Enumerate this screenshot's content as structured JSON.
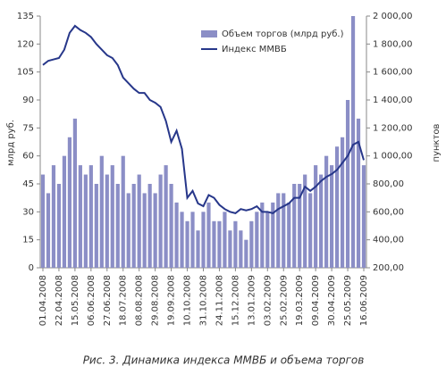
{
  "chart_data": {
    "type": "bar-line",
    "caption": "Рис. 3. Динамика индекса ММВБ и объема торгов",
    "y_label": "млрд руб.",
    "y2_label": "пунктов",
    "categories": [
      "01.04.2008",
      null,
      null,
      "22.04.2008",
      null,
      null,
      "15.05.2008",
      null,
      null,
      "06.06.2008",
      null,
      null,
      "27.06.2008",
      null,
      null,
      "18.07.2008",
      null,
      null,
      "08.08.2008",
      null,
      null,
      "29.08.2008",
      null,
      null,
      "19.09.2008",
      null,
      null,
      "10.10.2008",
      null,
      null,
      "31.10.2008",
      null,
      null,
      "24.11.2008",
      null,
      null,
      "15.12.2008",
      null,
      null,
      "13.01.2009",
      null,
      null,
      "03.02.2009",
      null,
      null,
      "25.02.2009",
      null,
      null,
      "19.03.2009",
      null,
      null,
      "09.04.2009",
      null,
      null,
      "30.04.2009",
      null,
      null,
      "25.05.2009",
      null,
      null,
      "16.06.2009"
    ],
    "series": [
      {
        "name": "Объем торгов (млрд руб.)",
        "type": "bar",
        "color": "#8b8ec6",
        "values": [
          50,
          40,
          55,
          45,
          60,
          70,
          80,
          55,
          50,
          55,
          45,
          60,
          50,
          55,
          45,
          60,
          40,
          45,
          50,
          40,
          45,
          40,
          50,
          55,
          45,
          35,
          30,
          25,
          30,
          20,
          30,
          35,
          25,
          25,
          30,
          20,
          25,
          20,
          15,
          25,
          30,
          35,
          30,
          35,
          40,
          40,
          35,
          45,
          45,
          50,
          40,
          55,
          50,
          60,
          55,
          65,
          70,
          90,
          135,
          80,
          55
        ]
      },
      {
        "name": "Индекс ММВБ",
        "type": "line",
        "axis": "y2",
        "color": "#27378a",
        "values": [
          1650,
          1680,
          1690,
          1700,
          1760,
          1880,
          1930,
          1900,
          1880,
          1850,
          1800,
          1760,
          1720,
          1700,
          1650,
          1560,
          1520,
          1480,
          1450,
          1450,
          1400,
          1380,
          1350,
          1250,
          1100,
          1180,
          1050,
          700,
          750,
          660,
          640,
          720,
          700,
          650,
          620,
          600,
          590,
          620,
          610,
          620,
          640,
          600,
          600,
          590,
          620,
          640,
          660,
          700,
          700,
          780,
          750,
          780,
          820,
          850,
          870,
          900,
          950,
          1000,
          1080,
          1100,
          970
        ]
      }
    ],
    "ylim": [
      0,
      135
    ],
    "yticks": [
      0,
      15,
      30,
      45,
      60,
      75,
      90,
      105,
      120,
      135
    ],
    "y2lim": [
      200,
      2000
    ],
    "y2ticks": [
      {
        "value": 200,
        "label": "200,00"
      },
      {
        "value": 400,
        "label": "400,00"
      },
      {
        "value": 600,
        "label": "600,00"
      },
      {
        "value": 800,
        "label": "800,00"
      },
      {
        "value": 1000,
        "label": "1 000,00"
      },
      {
        "value": 1200,
        "label": "1 200,00"
      },
      {
        "value": 1400,
        "label": "1 400,00"
      },
      {
        "value": 1600,
        "label": "1 600,00"
      },
      {
        "value": 1800,
        "label": "1 800,00"
      },
      {
        "value": 2000,
        "label": "2 000,00"
      }
    ]
  }
}
